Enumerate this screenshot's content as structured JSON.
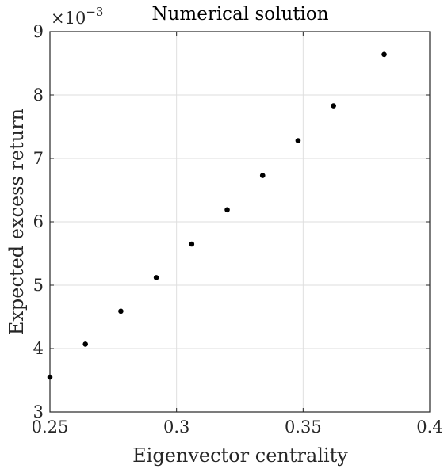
{
  "chart_data": {
    "type": "scatter",
    "title": "Numerical solution",
    "xlabel": "Eigenvector centrality",
    "ylabel": "Expected excess return",
    "xlim": [
      0.25,
      0.4
    ],
    "ylim": [
      3,
      9
    ],
    "x_ticks": [
      0.25,
      0.3,
      0.35,
      0.4
    ],
    "y_ticks": [
      3,
      4,
      5,
      6,
      7,
      8,
      9
    ],
    "x_tick_labels": [
      "0.25",
      "0.3",
      "0.35",
      "0.4"
    ],
    "y_tick_labels": [
      "3",
      "4",
      "5",
      "6",
      "7",
      "8",
      "9"
    ],
    "y_exponent": {
      "base": "×10",
      "power": "−3"
    },
    "grid": true,
    "marker_color": "#000000",
    "points": [
      {
        "x": 0.25,
        "y": 3.55
      },
      {
        "x": 0.264,
        "y": 4.07
      },
      {
        "x": 0.278,
        "y": 4.59
      },
      {
        "x": 0.292,
        "y": 5.12
      },
      {
        "x": 0.306,
        "y": 5.65
      },
      {
        "x": 0.32,
        "y": 6.19
      },
      {
        "x": 0.334,
        "y": 6.73
      },
      {
        "x": 0.348,
        "y": 7.28
      },
      {
        "x": 0.362,
        "y": 7.83
      },
      {
        "x": 0.382,
        "y": 8.64
      }
    ]
  }
}
